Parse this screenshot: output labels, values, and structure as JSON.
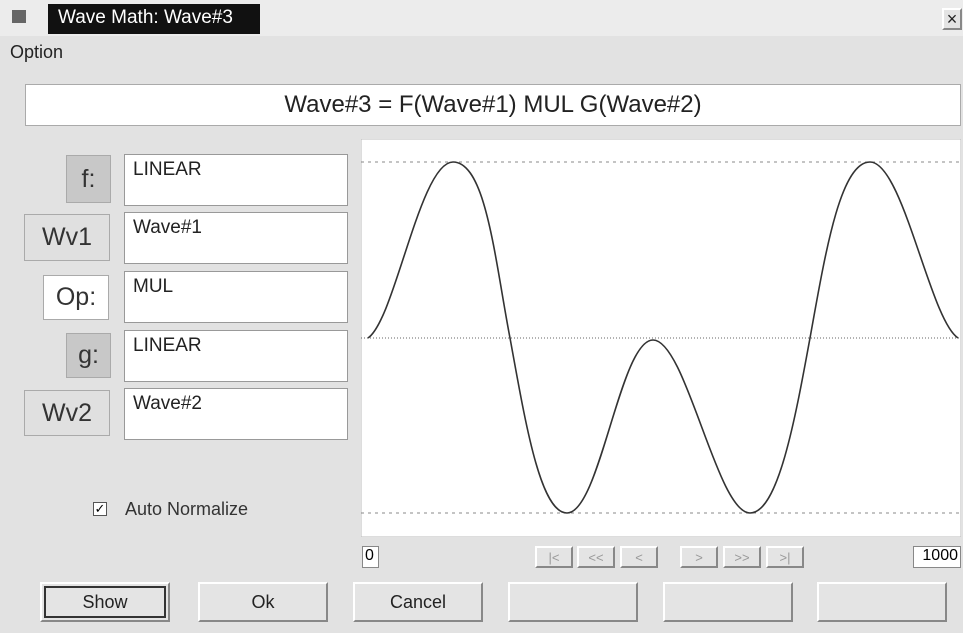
{
  "window": {
    "title": "Wave Math: Wave#3",
    "close": "×"
  },
  "menu": [
    "Option"
  ],
  "formula": "Wave#3 = F(Wave#1) MUL G(Wave#2)",
  "fields": [
    {
      "label": "f:",
      "value": "LINEAR"
    },
    {
      "label": "Wv1",
      "value": "Wave#1"
    },
    {
      "label": "Op:",
      "value": "MUL"
    },
    {
      "label": "g:",
      "value": "LINEAR"
    },
    {
      "label": "Wv2",
      "value": "Wave#2"
    }
  ],
  "checkbox": {
    "label": "Auto Normalize",
    "checked": true,
    "mark": "✓"
  },
  "range": {
    "start": "0",
    "end": "1000"
  },
  "nav": [
    "|<",
    "<<",
    "<",
    ">",
    ">>",
    ">|"
  ],
  "buttons": [
    "Show",
    "Ok",
    "Cancel",
    "",
    "",
    ""
  ]
}
